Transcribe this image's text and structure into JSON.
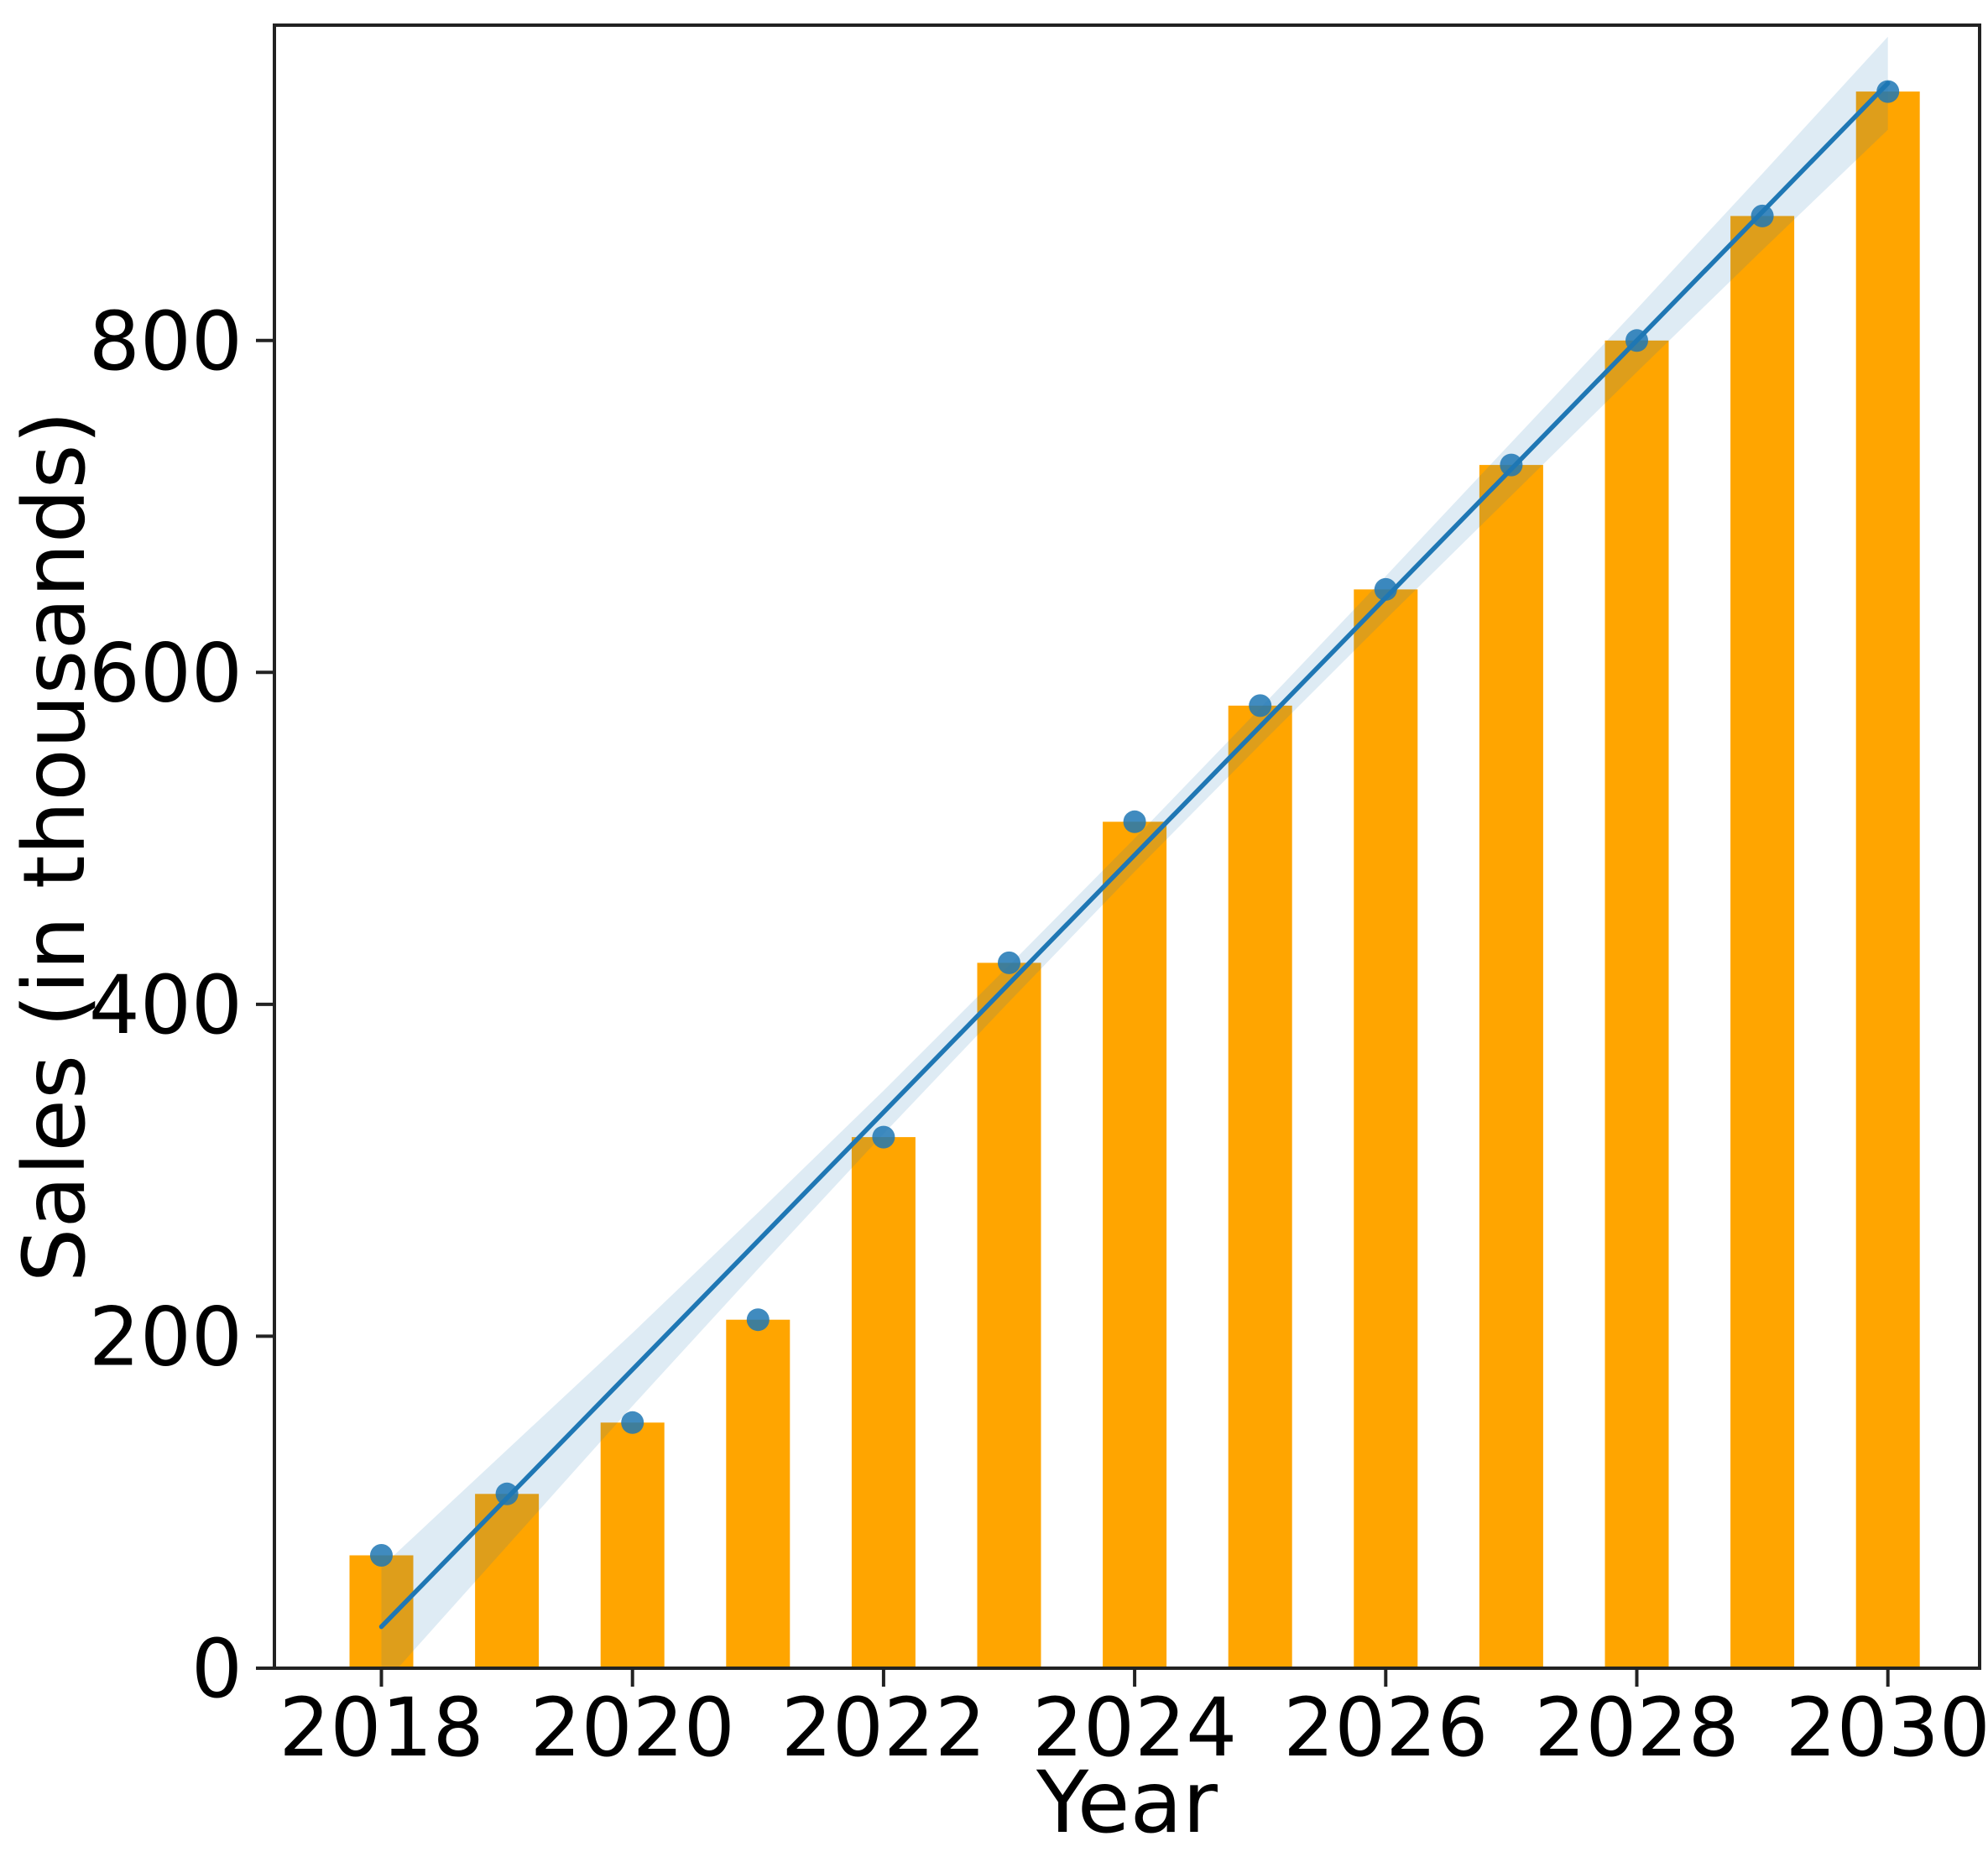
{
  "chart_data": {
    "type": "bar",
    "overlay": "scatter-with-linear-regression-and-ci-band",
    "title": "",
    "xlabel": "Year",
    "ylabel": "Sales (in thousands)",
    "categories": [
      "2018",
      "2019",
      "2020",
      "2021",
      "2022",
      "2023",
      "2024",
      "2025",
      "2026",
      "2027",
      "2028",
      "2029",
      "2030"
    ],
    "values": [
      68,
      105,
      148,
      210,
      320,
      425,
      510,
      580,
      650,
      725,
      800,
      875,
      950
    ],
    "scatter_values": [
      68,
      105,
      148,
      210,
      320,
      425,
      510,
      580,
      650,
      725,
      800,
      875,
      950
    ],
    "regression_line": {
      "x": [
        2018,
        2030
      ],
      "y": [
        25,
        955
      ]
    },
    "ci_half_widths": [
      36,
      29,
      22,
      17,
      13,
      11,
      10,
      11,
      13,
      16,
      19,
      23,
      28
    ],
    "ylim": [
      0,
      990
    ],
    "xlim": [
      2017.15,
      2030.73
    ],
    "yticks": [
      0,
      200,
      400,
      600,
      800
    ],
    "xticks": [
      2018,
      2020,
      2022,
      2024,
      2026,
      2028,
      2030
    ],
    "grid": false,
    "legend": "none",
    "colors": {
      "bar": "#ffa500",
      "line": "#1f77b4",
      "scatter": "#1f77b4",
      "ci_band": "#1f77b4",
      "axis": "#222222",
      "text": "#000000",
      "background": "#ffffff"
    }
  }
}
